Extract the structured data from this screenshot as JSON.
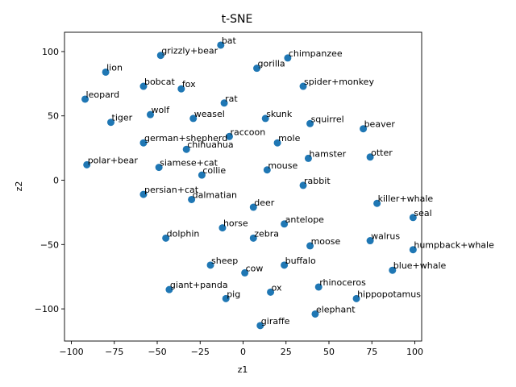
{
  "chart_data": {
    "type": "scatter",
    "title": "t-SNE",
    "xlabel": "z1",
    "ylabel": "z2",
    "xlim": [
      -104,
      104
    ],
    "ylim": [
      -125,
      115
    ],
    "xticks": [
      -100,
      -75,
      -50,
      -25,
      0,
      25,
      50,
      75,
      100
    ],
    "yticks": [
      -100,
      -50,
      0,
      50,
      100
    ],
    "grid": false,
    "marker_color": "#1f77b4",
    "points": [
      {
        "label": "bat",
        "x": -13,
        "y": 105
      },
      {
        "label": "chimpanzee",
        "x": 26,
        "y": 95
      },
      {
        "label": "grizzly+bear",
        "x": -48,
        "y": 97
      },
      {
        "label": "gorilla",
        "x": 8,
        "y": 87
      },
      {
        "label": "lion",
        "x": -80,
        "y": 84
      },
      {
        "label": "bobcat",
        "x": -58,
        "y": 73
      },
      {
        "label": "fox",
        "x": -36,
        "y": 71
      },
      {
        "label": "spider+monkey",
        "x": 35,
        "y": 73
      },
      {
        "label": "leopard",
        "x": -92,
        "y": 63
      },
      {
        "label": "rat",
        "x": -11,
        "y": 60
      },
      {
        "label": "wolf",
        "x": -54,
        "y": 51
      },
      {
        "label": "weasel",
        "x": -29,
        "y": 48
      },
      {
        "label": "skunk",
        "x": 13,
        "y": 48
      },
      {
        "label": "tiger",
        "x": -77,
        "y": 45
      },
      {
        "label": "squirrel",
        "x": 39,
        "y": 44
      },
      {
        "label": "beaver",
        "x": 70,
        "y": 40
      },
      {
        "label": "raccoon",
        "x": -8,
        "y": 34
      },
      {
        "label": "german+shepherd",
        "x": -58,
        "y": 29
      },
      {
        "label": "mole",
        "x": 20,
        "y": 29
      },
      {
        "label": "chihuahua",
        "x": -33,
        "y": 24
      },
      {
        "label": "hamster",
        "x": 38,
        "y": 17
      },
      {
        "label": "otter",
        "x": 74,
        "y": 18
      },
      {
        "label": "polar+bear",
        "x": -91,
        "y": 12
      },
      {
        "label": "siamese+cat",
        "x": -49,
        "y": 10
      },
      {
        "label": "mouse",
        "x": 14,
        "y": 8
      },
      {
        "label": "collie",
        "x": -24,
        "y": 4
      },
      {
        "label": "rabbit",
        "x": 35,
        "y": -4
      },
      {
        "label": "persian+cat",
        "x": -58,
        "y": -11
      },
      {
        "label": "dalmatian",
        "x": -30,
        "y": -15
      },
      {
        "label": "deer",
        "x": 6,
        "y": -21
      },
      {
        "label": "killer+whale",
        "x": 78,
        "y": -18
      },
      {
        "label": "seal",
        "x": 99,
        "y": -29
      },
      {
        "label": "antelope",
        "x": 24,
        "y": -34
      },
      {
        "label": "horse",
        "x": -12,
        "y": -37
      },
      {
        "label": "zebra",
        "x": 6,
        "y": -45
      },
      {
        "label": "dolphin",
        "x": -45,
        "y": -45
      },
      {
        "label": "walrus",
        "x": 74,
        "y": -47
      },
      {
        "label": "moose",
        "x": 39,
        "y": -51
      },
      {
        "label": "humpback+whale",
        "x": 99,
        "y": -54
      },
      {
        "label": "sheep",
        "x": -19,
        "y": -66
      },
      {
        "label": "buffalo",
        "x": 24,
        "y": -66
      },
      {
        "label": "cow",
        "x": 1,
        "y": -72
      },
      {
        "label": "blue+whale",
        "x": 87,
        "y": -70
      },
      {
        "label": "giant+panda",
        "x": -43,
        "y": -85
      },
      {
        "label": "rhinoceros",
        "x": 44,
        "y": -83
      },
      {
        "label": "ox",
        "x": 16,
        "y": -87
      },
      {
        "label": "pig",
        "x": -10,
        "y": -92
      },
      {
        "label": "hippopotamus",
        "x": 66,
        "y": -92
      },
      {
        "label": "elephant",
        "x": 42,
        "y": -104
      },
      {
        "label": "giraffe",
        "x": 10,
        "y": -113
      }
    ]
  }
}
